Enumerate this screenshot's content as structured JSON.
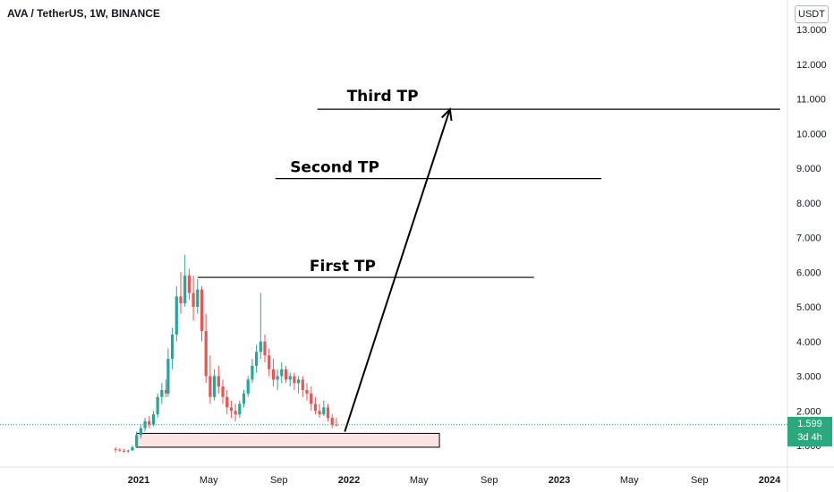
{
  "header": {
    "title": "AVA / TetherUS, 1W, BINANCE"
  },
  "price_axis": {
    "unit": "USDT",
    "current_price": "1.599",
    "countdown": "3d 4h"
  },
  "colors": {
    "up": "#26a69a",
    "down": "#ef5350",
    "current_line": "#26a69a",
    "zone_fill": "#fde4e4",
    "price_tag": "#2aa87e"
  },
  "chart_data": {
    "type": "candlestick",
    "symbol": "AVA / TetherUS",
    "interval": "1W",
    "exchange": "BINANCE",
    "y_ticks": [
      "1.000",
      "2.000",
      "3.000",
      "4.000",
      "5.000",
      "6.000",
      "7.000",
      "8.000",
      "9.000",
      "10.000",
      "11.000",
      "12.000",
      "13.000"
    ],
    "ylim": [
      0.5,
      13.2
    ],
    "x_ticks": [
      {
        "label": "2021",
        "t": 2021.0,
        "bold": true
      },
      {
        "label": "May",
        "t": 2021.333,
        "bold": false
      },
      {
        "label": "Sep",
        "t": 2021.667,
        "bold": false
      },
      {
        "label": "2022",
        "t": 2022.0,
        "bold": true
      },
      {
        "label": "May",
        "t": 2022.333,
        "bold": false
      },
      {
        "label": "Sep",
        "t": 2022.667,
        "bold": false
      },
      {
        "label": "2023",
        "t": 2023.0,
        "bold": true
      },
      {
        "label": "May",
        "t": 2023.333,
        "bold": false
      },
      {
        "label": "Sep",
        "t": 2023.667,
        "bold": false
      },
      {
        "label": "2024",
        "t": 2024.0,
        "bold": true
      }
    ],
    "current_price": 1.599,
    "candles": [
      [
        2020.89,
        0.9,
        0.95,
        0.8,
        0.88
      ],
      [
        2020.91,
        0.88,
        0.92,
        0.82,
        0.85
      ],
      [
        2020.93,
        0.85,
        0.9,
        0.8,
        0.83
      ],
      [
        2020.95,
        0.83,
        0.88,
        0.78,
        0.86
      ],
      [
        2020.97,
        0.86,
        1.0,
        0.84,
        0.95
      ],
      [
        2020.99,
        0.95,
        1.4,
        0.92,
        1.3
      ],
      [
        2021.01,
        1.3,
        1.6,
        1.2,
        1.5
      ],
      [
        2021.03,
        1.5,
        1.8,
        1.4,
        1.7
      ],
      [
        2021.05,
        1.7,
        1.85,
        1.5,
        1.6
      ],
      [
        2021.07,
        1.6,
        2.0,
        1.55,
        1.9
      ],
      [
        2021.09,
        1.9,
        2.5,
        1.8,
        2.4
      ],
      [
        2021.11,
        2.4,
        2.8,
        2.2,
        2.6
      ],
      [
        2021.13,
        2.6,
        2.9,
        2.4,
        2.5
      ],
      [
        2021.14,
        2.5,
        3.8,
        2.4,
        3.5
      ],
      [
        2021.16,
        3.5,
        4.4,
        3.2,
        4.2
      ],
      [
        2021.18,
        4.2,
        5.6,
        4.0,
        5.3
      ],
      [
        2021.2,
        5.3,
        6.0,
        4.8,
        5.1
      ],
      [
        2021.22,
        5.1,
        6.5,
        5.0,
        5.9
      ],
      [
        2021.24,
        5.9,
        6.1,
        5.2,
        5.4
      ],
      [
        2021.26,
        5.4,
        5.9,
        4.6,
        5.0
      ],
      [
        2021.28,
        5.0,
        5.8,
        4.8,
        5.5
      ],
      [
        2021.3,
        5.5,
        5.6,
        4.0,
        4.3
      ],
      [
        2021.32,
        4.3,
        4.8,
        2.8,
        3.0
      ],
      [
        2021.34,
        3.0,
        3.6,
        2.2,
        2.4
      ],
      [
        2021.36,
        2.4,
        3.2,
        2.3,
        3.0
      ],
      [
        2021.38,
        3.0,
        3.3,
        2.5,
        2.7
      ],
      [
        2021.4,
        2.7,
        2.9,
        2.2,
        2.4
      ],
      [
        2021.42,
        2.4,
        2.6,
        1.9,
        2.1
      ],
      [
        2021.44,
        2.1,
        2.3,
        1.8,
        2.0
      ],
      [
        2021.46,
        2.0,
        2.2,
        1.7,
        1.9
      ],
      [
        2021.48,
        1.9,
        2.3,
        1.8,
        2.2
      ],
      [
        2021.5,
        2.2,
        2.6,
        2.1,
        2.5
      ],
      [
        2021.52,
        2.5,
        3.0,
        2.4,
        2.9
      ],
      [
        2021.54,
        2.9,
        3.5,
        2.8,
        3.3
      ],
      [
        2021.56,
        3.3,
        3.9,
        3.1,
        3.7
      ],
      [
        2021.58,
        3.7,
        5.4,
        3.5,
        4.0
      ],
      [
        2021.6,
        4.0,
        4.2,
        3.4,
        3.6
      ],
      [
        2021.62,
        3.6,
        3.8,
        3.0,
        3.2
      ],
      [
        2021.64,
        3.2,
        3.5,
        2.7,
        2.9
      ],
      [
        2021.66,
        2.9,
        3.2,
        2.6,
        3.0
      ],
      [
        2021.68,
        3.0,
        3.4,
        2.8,
        3.2
      ],
      [
        2021.7,
        3.2,
        3.3,
        2.8,
        2.9
      ],
      [
        2021.72,
        2.9,
        3.1,
        2.7,
        3.0
      ],
      [
        2021.74,
        3.0,
        3.1,
        2.6,
        2.8
      ],
      [
        2021.76,
        2.8,
        3.0,
        2.5,
        2.9
      ],
      [
        2021.78,
        2.9,
        3.0,
        2.4,
        2.6
      ],
      [
        2021.8,
        2.6,
        2.8,
        2.3,
        2.5
      ],
      [
        2021.82,
        2.5,
        2.7,
        2.0,
        2.2
      ],
      [
        2021.84,
        2.2,
        2.4,
        1.9,
        2.0
      ],
      [
        2021.86,
        2.0,
        2.2,
        1.8,
        1.9
      ],
      [
        2021.88,
        1.9,
        2.3,
        1.85,
        2.1
      ],
      [
        2021.9,
        2.1,
        2.2,
        1.7,
        1.8
      ],
      [
        2021.92,
        1.8,
        1.9,
        1.5,
        1.6
      ],
      [
        2021.94,
        1.6,
        1.8,
        1.55,
        1.599
      ]
    ],
    "levels": [
      {
        "name": "First TP",
        "price": 5.85,
        "t_start": 2021.28,
        "t_end": 2022.88
      },
      {
        "name": "Second TP",
        "price": 8.7,
        "t_start": 2021.65,
        "t_end": 2023.2
      },
      {
        "name": "Third TP",
        "price": 10.7,
        "t_start": 2021.85,
        "t_end": 2024.05
      }
    ],
    "support_zone": {
      "low": 0.95,
      "high": 1.35,
      "t_start": 2020.99,
      "t_end": 2022.43
    },
    "arrow": {
      "from": [
        2021.98,
        1.4
      ],
      "to": [
        2022.48,
        10.7
      ]
    }
  }
}
